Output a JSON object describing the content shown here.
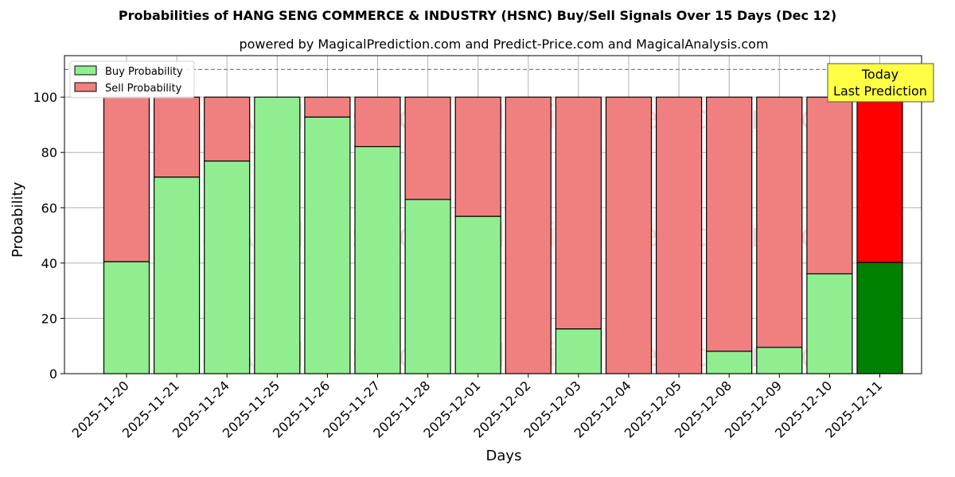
{
  "header": {
    "title": "Probabilities of HANG SENG COMMERCE & INDUSTRY (HSNC) Buy/Sell Signals Over 15 Days (Dec 12)",
    "subtitle": "powered by MagicalPrediction.com and Predict-Price.com and MagicalAnalysis.com"
  },
  "legend": {
    "buy_label": "Buy Probability",
    "sell_label": "Sell Probability"
  },
  "annotation": {
    "line1": "Today",
    "line2": "Last Prediction"
  },
  "watermarks": [
    "MagicalAnalysis.com",
    "MagicalPrediction.com"
  ],
  "colors": {
    "buy": "#90ee90",
    "sell": "#f08080",
    "buy_today": "#008000",
    "sell_today": "#ff0000",
    "annotation_bg": "#ffff44"
  },
  "chart_data": {
    "type": "bar",
    "stacked": true,
    "title": "Probabilities of HANG SENG COMMERCE & INDUSTRY (HSNC) Buy/Sell Signals Over 15 Days (Dec 12)",
    "subtitle": "powered by MagicalPrediction.com and Predict-Price.com and MagicalAnalysis.com",
    "xlabel": "Days",
    "ylabel": "Probability",
    "ylim": [
      0,
      115
    ],
    "yticks": [
      0,
      20,
      40,
      60,
      80,
      100
    ],
    "reference_line": 110,
    "grid": true,
    "legend_position": "upper left",
    "categories": [
      "2025-11-20",
      "2025-11-21",
      "2025-11-24",
      "2025-11-25",
      "2025-11-26",
      "2025-11-27",
      "2025-11-28",
      "2025-12-01",
      "2025-12-02",
      "2025-12-03",
      "2025-12-04",
      "2025-12-05",
      "2025-12-08",
      "2025-12-09",
      "2025-12-10",
      "2025-12-11"
    ],
    "series": [
      {
        "name": "Buy Probability",
        "values": [
          40.5,
          71.1,
          76.9,
          100,
          92.8,
          82.1,
          63.0,
          56.9,
          0,
          16.2,
          0,
          0,
          8.1,
          9.5,
          36.1,
          40.2
        ]
      },
      {
        "name": "Sell Probability",
        "values": [
          59.5,
          28.9,
          23.1,
          0,
          7.2,
          17.9,
          37.0,
          43.1,
          100,
          83.8,
          100,
          100,
          91.9,
          90.5,
          63.9,
          59.8
        ]
      }
    ],
    "annotations": [
      {
        "text": "Today\nLast Prediction",
        "x": "2025-12-11"
      }
    ]
  }
}
